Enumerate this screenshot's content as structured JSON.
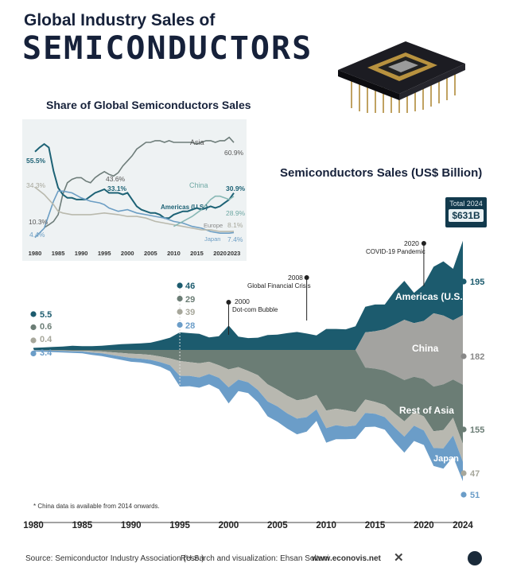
{
  "header": {
    "title_line1": "Global Industry Sales of",
    "title_line2": "SEMICONDUCTORS"
  },
  "chart_data": [
    {
      "type": "line",
      "title": "Share of Global Semiconductors Sales",
      "x_ticks": [
        "1980",
        "1985",
        "1990",
        "1995",
        "2000",
        "2005",
        "2010",
        "2015",
        "2020",
        "2023"
      ],
      "xlim": [
        1980,
        2023
      ],
      "ylim": [
        0,
        70
      ],
      "series": [
        {
          "name": "Asia",
          "color": "#6e7d7a",
          "x": [
            1982,
            1983,
            1984,
            1985,
            1986,
            1987,
            1988,
            1989,
            1990,
            1991,
            1992,
            1993,
            1994,
            1995,
            1996,
            1997,
            1998,
            1999,
            2000,
            2001,
            2002,
            2003,
            2004,
            2005,
            2006,
            2007,
            2008,
            2009,
            2010,
            2011,
            2012,
            2013,
            2014,
            2015,
            2016,
            2017,
            2018,
            2019,
            2020,
            2021,
            2022,
            2023
          ],
          "y": [
            10.3,
            12,
            14,
            18,
            30,
            37,
            39,
            40,
            40,
            38,
            37,
            40,
            42,
            43.6,
            42,
            41,
            43,
            47,
            50,
            53,
            57,
            59,
            61,
            61,
            62,
            62,
            61,
            62,
            61,
            61,
            61,
            61,
            61,
            60,
            61,
            62,
            62,
            61,
            62,
            62,
            64,
            60.9
          ]
        },
        {
          "name": "Americas (U.S.)",
          "color": "#1d6275",
          "x": [
            1980,
            1981,
            1982,
            1983,
            1984,
            1985,
            1986,
            1987,
            1988,
            1989,
            1990,
            1991,
            1992,
            1993,
            1994,
            1995,
            1996,
            1997,
            1998,
            1999,
            2000,
            2001,
            2002,
            2003,
            2004,
            2005,
            2006,
            2007,
            2008,
            2009,
            2010,
            2011,
            2012,
            2013,
            2014,
            2015,
            2016,
            2017,
            2018,
            2019,
            2020,
            2021,
            2022,
            2023
          ],
          "y": [
            55.5,
            58,
            60,
            58,
            44,
            34,
            30,
            28,
            28,
            27,
            27,
            27,
            29,
            31,
            32,
            33.1,
            31,
            31,
            31,
            30,
            31,
            27,
            23,
            21,
            20,
            19,
            19,
            18,
            16,
            16,
            18,
            19,
            20,
            20,
            21,
            22,
            21,
            22,
            23,
            22,
            23,
            25,
            27,
            30.9
          ]
        },
        {
          "name": "Japan",
          "color": "#6c9ec4",
          "x": [
            1980,
            1982,
            1984,
            1985,
            1986,
            1988,
            1990,
            1992,
            1994,
            1995,
            1996,
            1998,
            2000,
            2002,
            2004,
            2006,
            2008,
            2010,
            2012,
            2014,
            2016,
            2018,
            2020,
            2022,
            2023
          ],
          "y": [
            4.4,
            10,
            26,
            32,
            32,
            31,
            28,
            26,
            25,
            24,
            22,
            20,
            21,
            19,
            18,
            17,
            16,
            14,
            13,
            11,
            10,
            8,
            7,
            7,
            7.4
          ]
        },
        {
          "name": "Europe",
          "color": "#b9b9ad",
          "x": [
            1980,
            1982,
            1984,
            1985,
            1986,
            1988,
            1990,
            1992,
            1995,
            1998,
            2000,
            2002,
            2004,
            2006,
            2008,
            2010,
            2012,
            2014,
            2016,
            2018,
            2020,
            2022,
            2023
          ],
          "y": [
            34.3,
            30,
            24,
            20,
            19,
            18,
            18,
            18,
            19,
            18,
            17,
            17,
            16,
            14,
            13,
            12,
            11,
            10,
            9,
            9,
            8,
            8,
            8.1
          ]
        },
        {
          "name": "China",
          "color": "#88b8b5",
          "x": [
            2010,
            2012,
            2014,
            2015,
            2016,
            2017,
            2018,
            2019,
            2020,
            2021,
            2022,
            2023
          ],
          "y": [
            11,
            14,
            17,
            19,
            21,
            24,
            27,
            29,
            29,
            28,
            27,
            28.9
          ]
        }
      ],
      "labels": {
        "asia_start": "10.3%",
        "asia_peak": "43.6%",
        "asia_end": "60.9%",
        "us_start": "55.5%",
        "us_mid": "33.1%",
        "us_end": "30.9%",
        "europe_start": "34.3%",
        "europe_end": "8.1%",
        "japan_start": "4.4%",
        "japan_end": "7.4%",
        "china_end": "28.9%"
      }
    },
    {
      "type": "area",
      "title": "Semiconductors Sales (US$ Billion)",
      "total_label": "Total 2024",
      "total_value": "$631B",
      "x_ticks": [
        "1980",
        "1985",
        "1990",
        "1995",
        "2000",
        "2005",
        "2010",
        "2015",
        "2020",
        "2024"
      ],
      "xlim": [
        1980,
        2024
      ],
      "x": [
        1980,
        1981,
        1982,
        1983,
        1984,
        1985,
        1986,
        1987,
        1988,
        1989,
        1990,
        1991,
        1992,
        1993,
        1994,
        1995,
        1996,
        1997,
        1998,
        1999,
        2000,
        2001,
        2002,
        2003,
        2004,
        2005,
        2006,
        2007,
        2008,
        2009,
        2010,
        2011,
        2012,
        2013,
        2014,
        2015,
        2016,
        2017,
        2018,
        2019,
        2020,
        2021,
        2022,
        2023,
        2024
      ],
      "series": [
        {
          "name": "Americas (U.S.)",
          "color": "#1c5b6e",
          "values": [
            5.5,
            6.5,
            8,
            9,
            11,
            10,
            10,
            11,
            13,
            15,
            16,
            17,
            19,
            25,
            32,
            46,
            44,
            42,
            33,
            36,
            64,
            35,
            31,
            32,
            39,
            40,
            44,
            47,
            43,
            38,
            55,
            55,
            54,
            62,
            67,
            70,
            65,
            88,
            102,
            79,
            95,
            122,
            142,
            135,
            195
          ]
        },
        {
          "name": "China",
          "color": "#a3a3a0",
          "values": [
            0,
            0,
            0,
            0,
            0,
            0,
            0,
            0,
            0,
            0,
            0,
            0,
            0,
            0,
            0,
            0,
            0,
            0,
            0,
            0,
            0,
            0,
            0,
            0,
            0,
            0,
            0,
            0,
            0,
            0,
            0,
            0,
            0,
            0,
            92,
            98,
            108,
            132,
            158,
            141,
            152,
            192,
            180,
            155,
            182
          ]
        },
        {
          "name": "Rest of Asia",
          "color": "#6b7d75",
          "values": [
            0.6,
            1,
            1.3,
            1.6,
            2,
            2,
            3,
            4,
            6,
            8,
            10,
            11,
            13,
            17,
            22,
            29,
            32,
            35,
            31,
            40,
            51,
            45,
            55,
            66,
            90,
            104,
            120,
            132,
            128,
            118,
            159,
            154,
            158,
            163,
            84,
            87,
            90,
            100,
            108,
            92,
            98,
            117,
            120,
            100,
            155
          ]
        },
        {
          "name": "Japan",
          "color": "#b8b8b0",
          "values": [
            0.4,
            0.5,
            0.7,
            1,
            1.5,
            2,
            4,
            5,
            7,
            9,
            11,
            12,
            13,
            15,
            18,
            39,
            36,
            37,
            32,
            33,
            47,
            33,
            30,
            39,
            45,
            44,
            46,
            48,
            48,
            38,
            46,
            43,
            43,
            35,
            35,
            31,
            32,
            37,
            40,
            36,
            37,
            44,
            48,
            47,
            47
          ]
        },
        {
          "name": "Europe",
          "color": "#6b9dc8",
          "values": [
            3.4,
            3.6,
            3.8,
            4,
            4.5,
            5,
            6,
            7,
            8,
            9,
            10,
            10,
            11,
            12,
            16,
            28,
            27,
            27,
            27,
            30,
            42,
            30,
            28,
            32,
            39,
            40,
            40,
            41,
            38,
            30,
            38,
            37,
            33,
            35,
            37,
            34,
            33,
            38,
            42,
            40,
            38,
            47,
            53,
            55,
            51
          ]
        }
      ],
      "start_values": [
        "5.5",
        "0.6",
        "0.4",
        "3.4"
      ],
      "y1995_values": [
        "46",
        "29",
        "39",
        "28"
      ],
      "end_values": [
        "195",
        "182",
        "155",
        "47",
        "51"
      ],
      "annotations": [
        {
          "year": "2000",
          "text": "Dot-com Bubble"
        },
        {
          "year": "2008",
          "text": "Global Financial Crisis"
        },
        {
          "year": "2020",
          "text": "COVID-19 Pandemic"
        }
      ],
      "footnote": "* China data is available from 2014 onwards."
    }
  ],
  "footer": {
    "source": "Source: Semiconductor Industry Association (U.S.)",
    "credit": "Research and visualization: Ehsan Soltani",
    "site": "www.econovis.net"
  }
}
